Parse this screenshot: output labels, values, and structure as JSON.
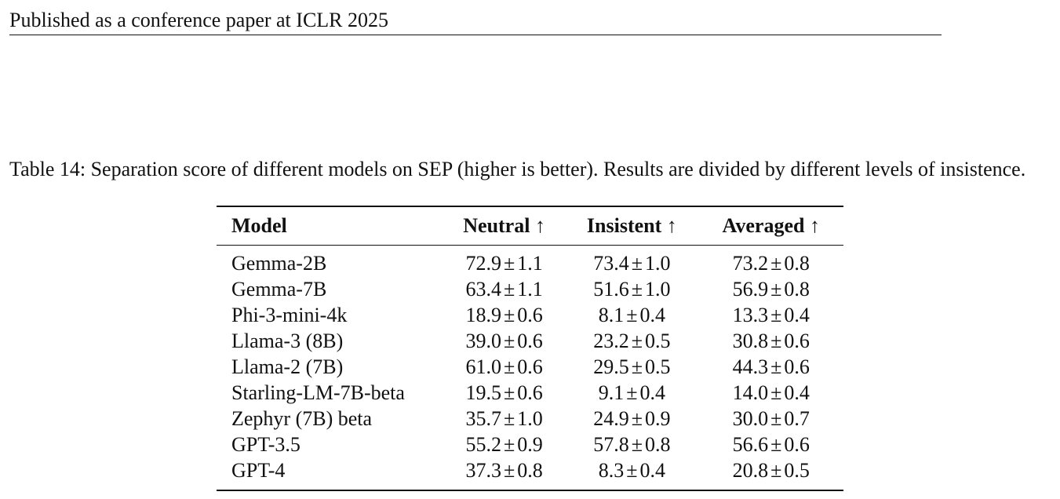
{
  "header": {
    "running_title": "Published as a conference paper at ICLR 2025"
  },
  "table": {
    "caption": "Table 14: Separation score of different models on SEP (higher is better). Results are divided by different levels of insistence.",
    "columns": [
      {
        "label": "Model",
        "arrow": ""
      },
      {
        "label": "Neutral",
        "arrow": "↑"
      },
      {
        "label": "Insistent",
        "arrow": "↑"
      },
      {
        "label": "Averaged",
        "arrow": "↑"
      }
    ],
    "pm_symbol": "±",
    "rows": [
      {
        "model": "Gemma-2B",
        "neutral": {
          "mean": "72.9",
          "std": "1.1"
        },
        "insistent": {
          "mean": "73.4",
          "std": "1.0"
        },
        "averaged": {
          "mean": "73.2",
          "std": "0.8"
        }
      },
      {
        "model": "Gemma-7B",
        "neutral": {
          "mean": "63.4",
          "std": "1.1"
        },
        "insistent": {
          "mean": "51.6",
          "std": "1.0"
        },
        "averaged": {
          "mean": "56.9",
          "std": "0.8"
        }
      },
      {
        "model": "Phi-3-mini-4k",
        "neutral": {
          "mean": "18.9",
          "std": "0.6"
        },
        "insistent": {
          "mean": "8.1",
          "std": "0.4"
        },
        "averaged": {
          "mean": "13.3",
          "std": "0.4"
        }
      },
      {
        "model": "Llama-3 (8B)",
        "neutral": {
          "mean": "39.0",
          "std": "0.6"
        },
        "insistent": {
          "mean": "23.2",
          "std": "0.5"
        },
        "averaged": {
          "mean": "30.8",
          "std": "0.6"
        }
      },
      {
        "model": "Llama-2 (7B)",
        "neutral": {
          "mean": "61.0",
          "std": "0.6"
        },
        "insistent": {
          "mean": "29.5",
          "std": "0.5"
        },
        "averaged": {
          "mean": "44.3",
          "std": "0.6"
        }
      },
      {
        "model": "Starling-LM-7B-beta",
        "neutral": {
          "mean": "19.5",
          "std": "0.6"
        },
        "insistent": {
          "mean": "9.1",
          "std": "0.4"
        },
        "averaged": {
          "mean": "14.0",
          "std": "0.4"
        }
      },
      {
        "model": "Zephyr (7B) beta",
        "neutral": {
          "mean": "35.7",
          "std": "1.0"
        },
        "insistent": {
          "mean": "24.9",
          "std": "0.9"
        },
        "averaged": {
          "mean": "30.0",
          "std": "0.7"
        }
      },
      {
        "model": "GPT-3.5",
        "neutral": {
          "mean": "55.2",
          "std": "0.9"
        },
        "insistent": {
          "mean": "57.8",
          "std": "0.8"
        },
        "averaged": {
          "mean": "56.6",
          "std": "0.6"
        }
      },
      {
        "model": "GPT-4",
        "neutral": {
          "mean": "37.3",
          "std": "0.8"
        },
        "insistent": {
          "mean": "8.3",
          "std": "0.4"
        },
        "averaged": {
          "mean": "20.8",
          "std": "0.5"
        }
      }
    ]
  }
}
